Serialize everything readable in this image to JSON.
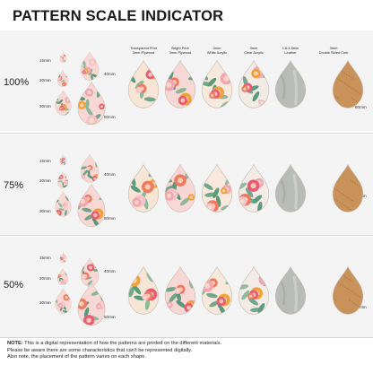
{
  "title": "PATTERN SCALE INDICATOR",
  "materials": [
    {
      "line1": "Transparent Print",
      "line2": "3mm Plywood"
    },
    {
      "line1": "Bright Print",
      "line2": "3mm Plywood"
    },
    {
      "line1": "3mm",
      "line2": "White Acrylic"
    },
    {
      "line1": "3mm",
      "line2": "Clear Acrylic"
    },
    {
      "line1": "1.6-1.8mm",
      "line2": "Leather"
    },
    {
      "line1": "3mm",
      "line2": "Double Sided Cork"
    }
  ],
  "sizes": {
    "small": "15mm",
    "medium": "20mm",
    "medium_large": "30mm",
    "large": "40mm",
    "xl": "50mm",
    "full": "60mm"
  },
  "scales": [
    {
      "label": "100%"
    },
    {
      "label": "75%"
    },
    {
      "label": "50%"
    }
  ],
  "note": {
    "bold": "NOTE:",
    "line1": " This is a digital representation of how the patterns are printed on the different materials.",
    "line2": "Please be aware there are some characteristics that can't be represented digitally.",
    "line3": "Also note, the placement of the pattern varies on each shape."
  },
  "colors": {
    "band": "#f4f4f4",
    "pink": "#f2a5b5",
    "coral": "#ee7a62",
    "orange": "#f2a03a",
    "green": "#3f8c6a",
    "cream": "#f7e6d6",
    "cork": "#c9925a",
    "leather": "#b8bcb6"
  }
}
